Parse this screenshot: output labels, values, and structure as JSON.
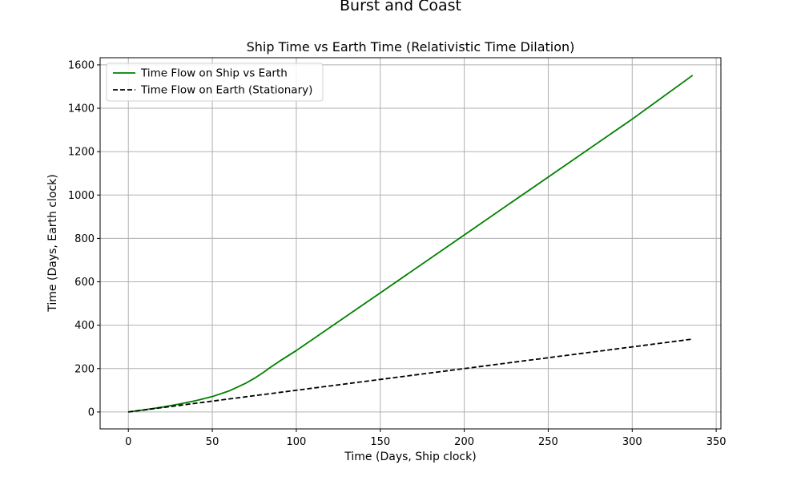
{
  "figure": {
    "suptitle": "Burst and Coast"
  },
  "chart_data": {
    "type": "line",
    "title": "Ship Time vs Earth Time (Relativistic Time Dilation)",
    "xlabel": "Time (Days, Ship clock)",
    "ylabel": "Time (Days, Earth clock)",
    "xlim": [
      -16.8,
      352.8
    ],
    "ylim": [
      -78,
      1633
    ],
    "xticks": [
      0,
      50,
      100,
      150,
      200,
      250,
      300,
      350
    ],
    "yticks": [
      0,
      200,
      400,
      600,
      800,
      1000,
      1200,
      1400,
      1600
    ],
    "grid": true,
    "legend_position": "top-left",
    "series": [
      {
        "name": "Time Flow on Ship vs Earth",
        "color": "#008000",
        "style": "solid",
        "x": [
          0,
          10,
          20,
          30,
          40,
          50,
          60,
          70,
          75,
          80,
          85,
          90,
          100,
          150,
          200,
          250,
          300,
          336
        ],
        "y": [
          0,
          10.5,
          22,
          36,
          52,
          71,
          97,
          133,
          155,
          180,
          208,
          234,
          283,
          549,
          816,
          1083,
          1350,
          1552
        ]
      },
      {
        "name": "Time Flow on Earth (Stationary)",
        "color": "#000000",
        "style": "dashed",
        "x": [
          0,
          336
        ],
        "y": [
          0,
          336
        ]
      }
    ]
  }
}
